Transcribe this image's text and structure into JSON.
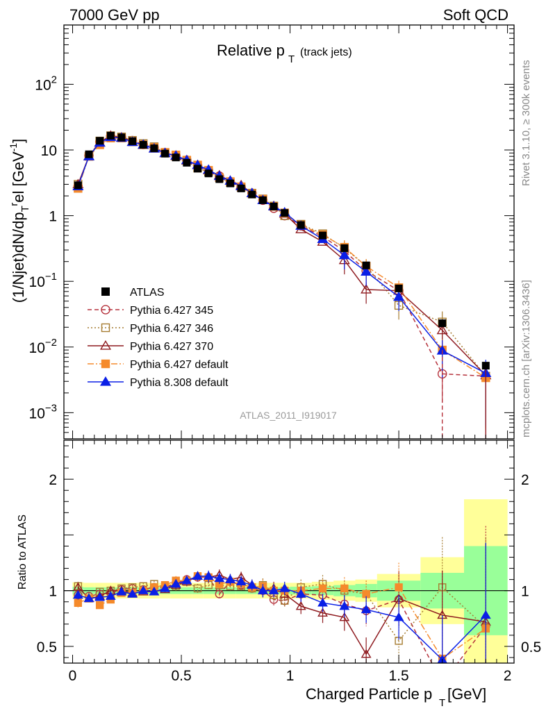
{
  "header": {
    "left": "7000 GeV pp",
    "right": "Soft QCD"
  },
  "side": {
    "rivet": "Rivet 3.1.10, ≥ 300k events",
    "mcplots": "mcplots.cern.ch [arXiv:1306.3436]"
  },
  "watermark": "ATLAS_2011_I919017",
  "colors": {
    "ATLAS": "#000000",
    "p345": "#b5313b",
    "p346": "#a67c30",
    "p370": "#8e1a1f",
    "pdef": "#f58a2b",
    "p8": "#0a1fe6",
    "band_inner": "#99ff99",
    "band_outer": "#ffff99"
  },
  "chart_data": [
    {
      "type": "line",
      "panel": "main",
      "title": "Relative p_T (track jets)",
      "title_main": "Relative p",
      "title_sub": "T",
      "title_extra": "(track jets)",
      "ylabel": "(1/Njet)dN/dp_T^rel [GeV^-1]",
      "yscale": "log",
      "xlim": [
        -0.04,
        2.03
      ],
      "ylim": [
        0.0004,
        800
      ],
      "y_ticks": [
        {
          "v": 0.001,
          "base": "10",
          "exp": "−3"
        },
        {
          "v": 0.01,
          "base": "10",
          "exp": "−2"
        },
        {
          "v": 0.1,
          "base": "10",
          "exp": "−1"
        },
        {
          "v": 1,
          "label": "1"
        },
        {
          "v": 10,
          "label": "10"
        },
        {
          "v": 100,
          "base": "10",
          "exp": "2"
        }
      ],
      "legend_position": "lower-left",
      "legend": [
        {
          "key": "ATLAS",
          "label": "ATLAS"
        },
        {
          "key": "p345",
          "label": "Pythia 6.427 345"
        },
        {
          "key": "p346",
          "label": "Pythia 6.427 346"
        },
        {
          "key": "p370",
          "label": "Pythia 6.427 370"
        },
        {
          "key": "pdef",
          "label": "Pythia 6.427 default"
        },
        {
          "key": "p8",
          "label": "Pythia 8.308 default"
        }
      ],
      "x": [
        0.025,
        0.075,
        0.125,
        0.175,
        0.225,
        0.275,
        0.325,
        0.375,
        0.425,
        0.475,
        0.525,
        0.575,
        0.625,
        0.675,
        0.725,
        0.775,
        0.825,
        0.875,
        0.925,
        0.975,
        1.05,
        1.15,
        1.25,
        1.35,
        1.5,
        1.7,
        1.9
      ],
      "data": {
        "name": "ATLAS",
        "values": [
          2.9,
          8.6,
          13.8,
          16.5,
          15.5,
          13.6,
          12.0,
          10.6,
          8.8,
          7.7,
          6.4,
          5.2,
          4.4,
          3.6,
          3.1,
          2.6,
          2.1,
          1.72,
          1.38,
          1.1,
          0.72,
          0.5,
          0.32,
          0.175,
          0.078,
          0.023,
          0.0052
        ]
      },
      "series": [
        {
          "key": "p345",
          "name": "Pythia 6.427 345",
          "values": [
            2.8,
            8.2,
            13.3,
            16.2,
            15.6,
            13.9,
            12.1,
            10.9,
            9.1,
            8.2,
            7.0,
            5.8,
            4.9,
            4.0,
            3.3,
            2.75,
            2.2,
            1.72,
            1.3,
            1.0,
            0.7,
            0.48,
            0.29,
            0.145,
            0.072,
            0.0039,
            0.0036
          ]
        },
        {
          "key": "p346",
          "name": "Pythia 6.427 346",
          "values": [
            3.0,
            8.0,
            13.7,
            16.5,
            15.8,
            14.0,
            12.5,
            11.2,
            9.1,
            8.0,
            6.9,
            5.3,
            4.6,
            3.8,
            3.2,
            2.7,
            2.2,
            1.8,
            1.4,
            1.0,
            0.74,
            0.53,
            0.32,
            0.17,
            0.043,
            0.024,
            0.0036
          ]
        },
        {
          "key": "p370",
          "name": "Pythia 6.427 370",
          "values": [
            3.0,
            8.0,
            13.0,
            16.5,
            15.5,
            13.3,
            11.9,
            10.5,
            8.9,
            8.1,
            6.9,
            5.9,
            4.9,
            4.1,
            3.4,
            2.9,
            2.2,
            1.72,
            1.4,
            1.07,
            0.62,
            0.4,
            0.21,
            0.075,
            0.072,
            0.018,
            0.0037
          ]
        },
        {
          "key": "pdef",
          "name": "Pythia 6.427 default",
          "values": [
            2.6,
            8.0,
            12.0,
            15.2,
            15.2,
            13.3,
            12.0,
            10.9,
            9.2,
            8.4,
            7.0,
            5.9,
            4.9,
            3.8,
            3.3,
            2.75,
            2.15,
            1.78,
            1.38,
            1.1,
            0.72,
            0.51,
            0.33,
            0.17,
            0.08,
            0.009,
            0.0034
          ]
        },
        {
          "key": "p8",
          "name": "Pythia 8.308 default",
          "values": [
            2.8,
            8.0,
            12.9,
            15.7,
            15.3,
            13.2,
            12.0,
            10.5,
            9.0,
            8.2,
            7.0,
            5.9,
            5.0,
            4.0,
            3.4,
            2.8,
            2.2,
            1.72,
            1.38,
            1.12,
            0.7,
            0.44,
            0.25,
            0.14,
            0.058,
            0.0088,
            0.004
          ]
        }
      ]
    },
    {
      "type": "line",
      "panel": "ratio",
      "xlabel": "Charged Particle p_T^rel [GeV]",
      "xlabel_main": "Charged Particle p",
      "xlabel_sub": "T",
      "xlabel_sup": "rel",
      "xlabel_unit": "[GeV]",
      "ylabel": "Ratio to ATLAS",
      "xlim": [
        -0.04,
        2.03
      ],
      "ylim": [
        0.35,
        2.35
      ],
      "x_ticks": [
        {
          "v": 0,
          "label": "0"
        },
        {
          "v": 0.5,
          "label": "0.5"
        },
        {
          "v": 1,
          "label": "1"
        },
        {
          "v": 1.5,
          "label": "1.5"
        },
        {
          "v": 2,
          "label": "2"
        }
      ],
      "y_ticks": [
        {
          "v": 0.5,
          "label": "0.5"
        },
        {
          "v": 1,
          "label": "1"
        },
        {
          "v": 2,
          "label": "2"
        }
      ],
      "bin_edges": [
        0.0,
        0.05,
        0.1,
        0.15,
        0.2,
        0.25,
        0.3,
        0.35,
        0.4,
        0.45,
        0.5,
        0.55,
        0.6,
        0.65,
        0.7,
        0.75,
        0.8,
        0.85,
        0.9,
        0.95,
        1.0,
        1.1,
        1.2,
        1.3,
        1.4,
        1.6,
        1.8,
        2.0
      ],
      "band_inner": [
        0.035,
        0.03,
        0.03,
        0.03,
        0.03,
        0.03,
        0.03,
        0.03,
        0.03,
        0.03,
        0.03,
        0.03,
        0.03,
        0.03,
        0.03,
        0.03,
        0.03,
        0.03,
        0.03,
        0.03,
        0.035,
        0.04,
        0.05,
        0.06,
        0.09,
        0.16,
        0.4
      ],
      "band_outer": [
        0.075,
        0.07,
        0.07,
        0.07,
        0.07,
        0.07,
        0.07,
        0.07,
        0.07,
        0.07,
        0.07,
        0.07,
        0.07,
        0.07,
        0.07,
        0.07,
        0.07,
        0.07,
        0.07,
        0.07,
        0.07,
        0.08,
        0.09,
        0.1,
        0.15,
        0.3,
        0.82
      ],
      "x": [
        0.025,
        0.075,
        0.125,
        0.175,
        0.225,
        0.275,
        0.325,
        0.375,
        0.425,
        0.475,
        0.525,
        0.575,
        0.625,
        0.675,
        0.725,
        0.775,
        0.825,
        0.875,
        0.925,
        0.975,
        1.05,
        1.15,
        1.25,
        1.35,
        1.5,
        1.7,
        1.9
      ],
      "series": [
        {
          "key": "p345",
          "name": "Pythia 6.427 345",
          "values": [
            0.96,
            0.95,
            0.97,
            0.98,
            1.01,
            1.02,
            1.01,
            1.03,
            1.03,
            1.07,
            1.1,
            1.12,
            1.12,
            0.97,
            1.08,
            1.05,
            1.02,
            1.0,
            0.92,
            0.91,
            0.97,
            0.96,
            0.88,
            0.82,
            0.92,
            0.17,
            0.68
          ]
        },
        {
          "key": "p346",
          "name": "Pythia 6.427 346",
          "values": [
            1.04,
            0.93,
            0.99,
            1.0,
            1.02,
            1.03,
            1.04,
            1.06,
            1.03,
            1.04,
            1.08,
            1.02,
            1.05,
            1.05,
            1.04,
            1.04,
            1.02,
            1.05,
            0.96,
            0.91,
            1.03,
            1.06,
            1.0,
            0.97,
            0.55,
            1.03,
            0.67
          ]
        },
        {
          "key": "p370",
          "name": "Pythia 6.427 370",
          "values": [
            1.03,
            0.93,
            0.95,
            1.0,
            1.0,
            0.98,
            0.99,
            0.99,
            1.01,
            1.05,
            1.08,
            1.13,
            1.12,
            1.14,
            1.1,
            1.12,
            1.05,
            1.0,
            1.02,
            0.97,
            0.86,
            0.8,
            0.76,
            0.43,
            0.93,
            0.78,
            0.72
          ]
        },
        {
          "key": "pdef",
          "name": "Pythia 6.427 default",
          "values": [
            0.89,
            0.93,
            0.87,
            0.92,
            0.98,
            0.98,
            1.0,
            1.03,
            1.05,
            1.09,
            1.09,
            1.13,
            1.12,
            1.06,
            1.08,
            1.06,
            1.03,
            1.04,
            1.0,
            1.0,
            1.0,
            1.02,
            1.02,
            0.97,
            1.03,
            0.39,
            0.66
          ]
        },
        {
          "key": "p8",
          "name": "Pythia 8.308 default",
          "values": [
            0.96,
            0.93,
            0.94,
            0.95,
            0.99,
            0.97,
            1.0,
            0.99,
            1.02,
            1.06,
            1.09,
            1.13,
            1.13,
            1.11,
            1.1,
            1.08,
            1.05,
            1.0,
            1.0,
            1.02,
            0.97,
            0.89,
            0.86,
            0.83,
            0.76,
            0.38,
            0.78
          ]
        }
      ],
      "error_bars": {
        "p345": [
          0.04,
          0.03,
          0.03,
          0.03,
          0.03,
          0.03,
          0.03,
          0.03,
          0.03,
          0.04,
          0.04,
          0.04,
          0.05,
          0.05,
          0.05,
          0.05,
          0.05,
          0.06,
          0.06,
          0.06,
          0.07,
          0.09,
          0.1,
          0.14,
          0.25,
          0.5,
          0.9
        ],
        "p346": [
          0.04,
          0.03,
          0.03,
          0.03,
          0.03,
          0.03,
          0.03,
          0.03,
          0.03,
          0.04,
          0.04,
          0.04,
          0.05,
          0.05,
          0.05,
          0.05,
          0.05,
          0.06,
          0.06,
          0.06,
          0.07,
          0.08,
          0.09,
          0.12,
          0.2,
          0.45,
          0.8
        ],
        "p370": [
          0.04,
          0.03,
          0.03,
          0.03,
          0.03,
          0.03,
          0.03,
          0.03,
          0.03,
          0.04,
          0.04,
          0.04,
          0.05,
          0.05,
          0.05,
          0.05,
          0.05,
          0.06,
          0.06,
          0.06,
          0.07,
          0.09,
          0.12,
          0.15,
          0.25,
          0.4,
          0.7
        ],
        "pdef": [
          0.04,
          0.03,
          0.03,
          0.03,
          0.03,
          0.03,
          0.03,
          0.03,
          0.03,
          0.04,
          0.04,
          0.04,
          0.05,
          0.05,
          0.05,
          0.05,
          0.05,
          0.06,
          0.06,
          0.06,
          0.07,
          0.08,
          0.1,
          0.12,
          0.22,
          0.4,
          0.7
        ],
        "p8": [
          0.04,
          0.03,
          0.03,
          0.03,
          0.03,
          0.03,
          0.03,
          0.03,
          0.03,
          0.04,
          0.04,
          0.04,
          0.05,
          0.05,
          0.05,
          0.05,
          0.05,
          0.06,
          0.06,
          0.06,
          0.07,
          0.08,
          0.1,
          0.12,
          0.2,
          0.4,
          0.65
        ]
      }
    }
  ]
}
